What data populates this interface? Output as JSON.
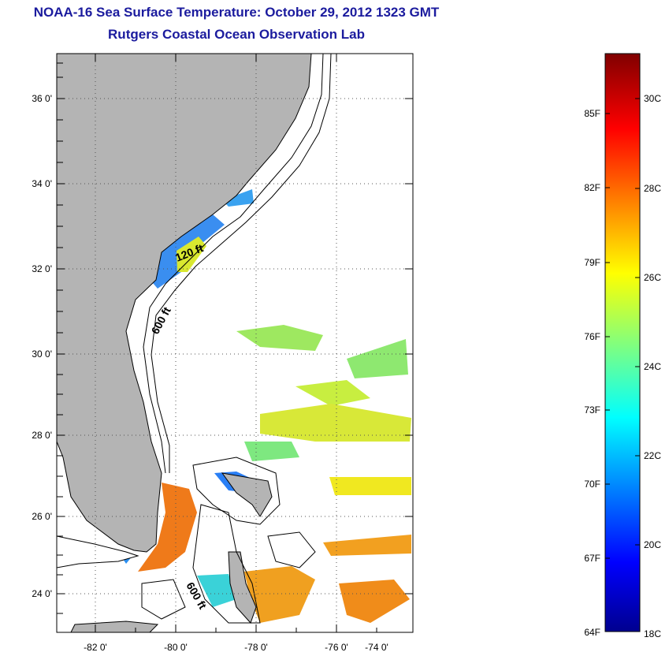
{
  "title": "NOAA-16 Sea Surface Temperature:  October 29, 2012 1323 GMT",
  "subtitle": "Rutgers Coastal Ocean Observation Lab",
  "map": {
    "lon_range": [
      -83,
      -73
    ],
    "lat_range": [
      23,
      37
    ],
    "lon_ticks": [
      "-82 0'",
      "-80 0'",
      "-78 0'",
      "-76 0'",
      "-74 0'"
    ],
    "lat_ticks": [
      "36 0'",
      "34 0'",
      "32 0'",
      "30 0'",
      "28 0'",
      "26 0'",
      "24 0'"
    ],
    "grid": "dotted",
    "land_color": "#b4b4b4",
    "depth_labels": [
      {
        "text": "120 ft",
        "lon": -79.6,
        "lat": 32.3
      },
      {
        "text": "600 ft",
        "lon": -80.4,
        "lat": 30.8
      },
      {
        "text": "600 ft",
        "lon": -79.4,
        "lat": 23.8
      }
    ]
  },
  "colorbar": {
    "fahrenheit_labels": [
      "85F",
      "82F",
      "79F",
      "76F",
      "73F",
      "70F",
      "67F",
      "64F"
    ],
    "celsius_labels": [
      "30C",
      "28C",
      "26C",
      "24C",
      "22C",
      "20C",
      "18C"
    ],
    "range_c": [
      18,
      31
    ]
  }
}
